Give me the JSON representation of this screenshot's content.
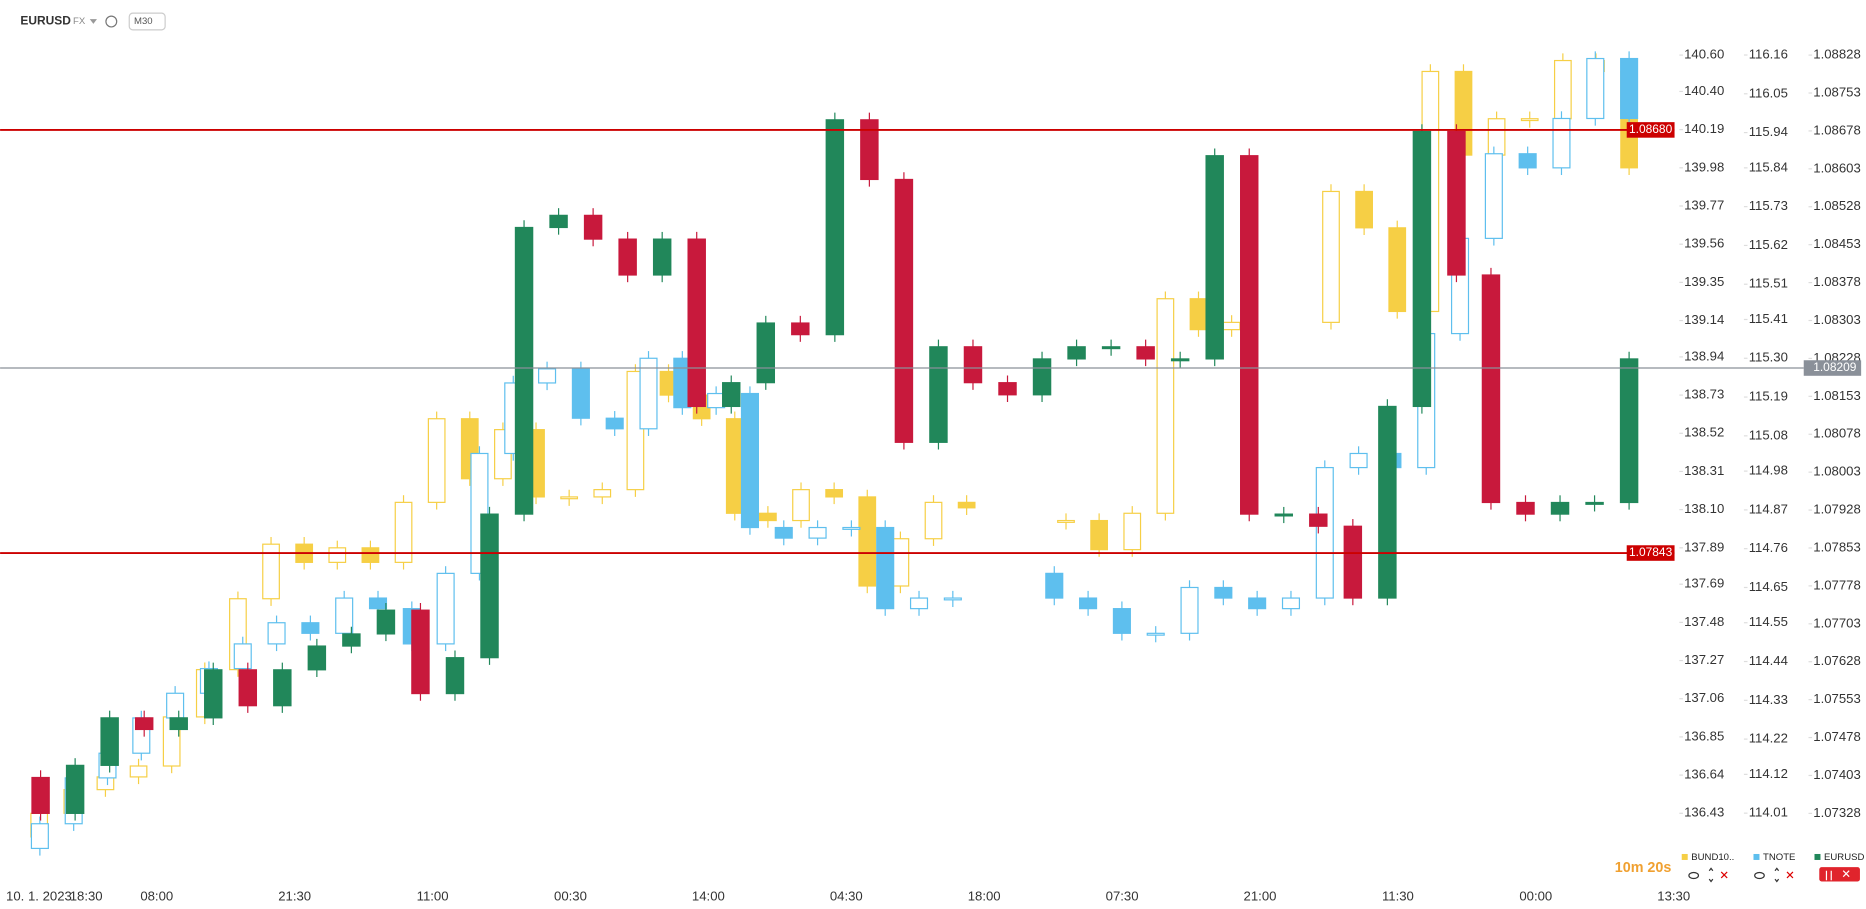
{
  "chart_data": {
    "type": "candlestick",
    "title": "EURUSD",
    "instrument_class": "FX",
    "timeframe": "M30",
    "countdown": "10m 20s",
    "xtick_labels": [
      "10. 1. 2023",
      "18:30",
      "08:00",
      "21:30",
      "11:00",
      "00:30",
      "14:00",
      "04:30",
      "18:00",
      "07:30",
      "21:00",
      "11:30",
      "00:00",
      "13:30"
    ],
    "series": [
      {
        "name": "BUND10..",
        "color": "#f6cf45",
        "axis": "y1",
        "ylim": [
          136.068,
          140.903
        ],
        "yticks": [
          {
            "value": 140.6,
            "label": "140.60"
          },
          {
            "value": 140.4,
            "label": "140.40"
          },
          140.19,
          139.98,
          139.77,
          139.56,
          139.35,
          139.14,
          138.94,
          138.73,
          138.52,
          138.31,
          {
            "value": 138.1,
            "label": "138.10"
          },
          137.89,
          137.69,
          137.48,
          137.27,
          137.06,
          136.85,
          136.64,
          136.43
        ],
        "values": [
          136.3,
          136.43,
          136.56,
          136.63,
          136.69,
          136.96,
          137.22,
          137.61,
          137.91,
          137.81,
          137.89,
          137.81,
          138.14,
          138.6,
          138.27,
          138.54,
          138.17,
          138.17,
          138.21,
          138.86,
          138.73,
          138.6,
          138.08,
          138.04,
          138.21,
          138.17,
          137.68,
          137.94,
          138.14,
          138.11,
          null,
          138.04,
          138.04,
          137.88,
          138.08,
          139.26,
          139.09,
          139.13,
          null,
          139.13,
          139.85,
          139.65,
          139.19,
          140.51,
          140.05,
          140.25,
          140.25,
          140.57,
          140.51,
          139.98
        ]
      },
      {
        "name": "TNOTE",
        "color": "#5ebfee",
        "axis": "y2",
        "ylim": [
          113.823,
          116.316
        ],
        "yticks": [
          116.16,
          116.05,
          115.94,
          115.84,
          115.73,
          115.62,
          115.51,
          115.41,
          {
            "value": 115.3,
            "label": "115.30"
          },
          115.19,
          115.08,
          114.98,
          114.87,
          114.76,
          114.65,
          114.55,
          114.44,
          114.33,
          114.22,
          114.12,
          114.01
        ],
        "values": [
          113.91,
          113.98,
          114.11,
          114.18,
          114.28,
          114.35,
          114.42,
          114.49,
          114.55,
          114.52,
          114.62,
          114.59,
          114.49,
          114.69,
          115.03,
          115.23,
          115.27,
          115.13,
          115.1,
          115.3,
          115.16,
          115.2,
          114.82,
          114.79,
          114.82,
          114.82,
          114.59,
          114.62,
          114.62,
          null,
          114.69,
          114.62,
          114.59,
          114.52,
          114.52,
          114.65,
          114.62,
          114.59,
          114.62,
          114.99,
          115.03,
          114.99,
          115.37,
          115.64,
          115.88,
          115.84,
          115.98,
          116.15,
          115.98
        ]
      },
      {
        "name": "EURUSD",
        "color": "#21875a",
        "down_color": "#c8193c",
        "axis": "y3",
        "ylim": [
          1.07198,
          1.08937
        ],
        "yticks": [
          1.08828,
          1.08753,
          1.08678,
          1.08603,
          1.08528,
          1.08453,
          1.08378,
          1.08303,
          1.08228,
          1.08153,
          1.08078,
          1.08003,
          1.07928,
          1.07853,
          1.07778,
          1.07703,
          1.07628,
          1.07553,
          1.07478,
          1.07403,
          1.07328
        ],
        "values": [
          1.07399,
          1.07328,
          1.07423,
          1.07517,
          1.07494,
          1.07517,
          1.07612,
          1.07541,
          1.07612,
          1.07659,
          1.07683,
          1.0773,
          1.07565,
          1.07636,
          1.0792,
          1.08487,
          1.08511,
          1.08464,
          1.08393,
          1.08464,
          1.08133,
          1.0818,
          1.08298,
          1.08275,
          1.087,
          1.08582,
          1.08062,
          1.08251,
          1.0818,
          1.08156,
          1.08227,
          1.08251,
          1.08251,
          1.08227,
          1.08227,
          1.08629,
          1.0792,
          1.0792,
          1.07896,
          1.07754,
          1.08133,
          1.08677,
          1.08393,
          1.07943,
          1.0792,
          1.07943,
          1.07943,
          1.08227
        ]
      }
    ],
    "hlines": [
      {
        "value": 1.0868,
        "label": "1.08680",
        "color": "#cc0000",
        "kind": "level"
      },
      {
        "value": 1.07843,
        "label": "1.07843",
        "color": "#cc0000",
        "kind": "level"
      },
      {
        "value": 1.08209,
        "label": "1.08209",
        "color": "#8a9099",
        "kind": "last"
      }
    ]
  }
}
